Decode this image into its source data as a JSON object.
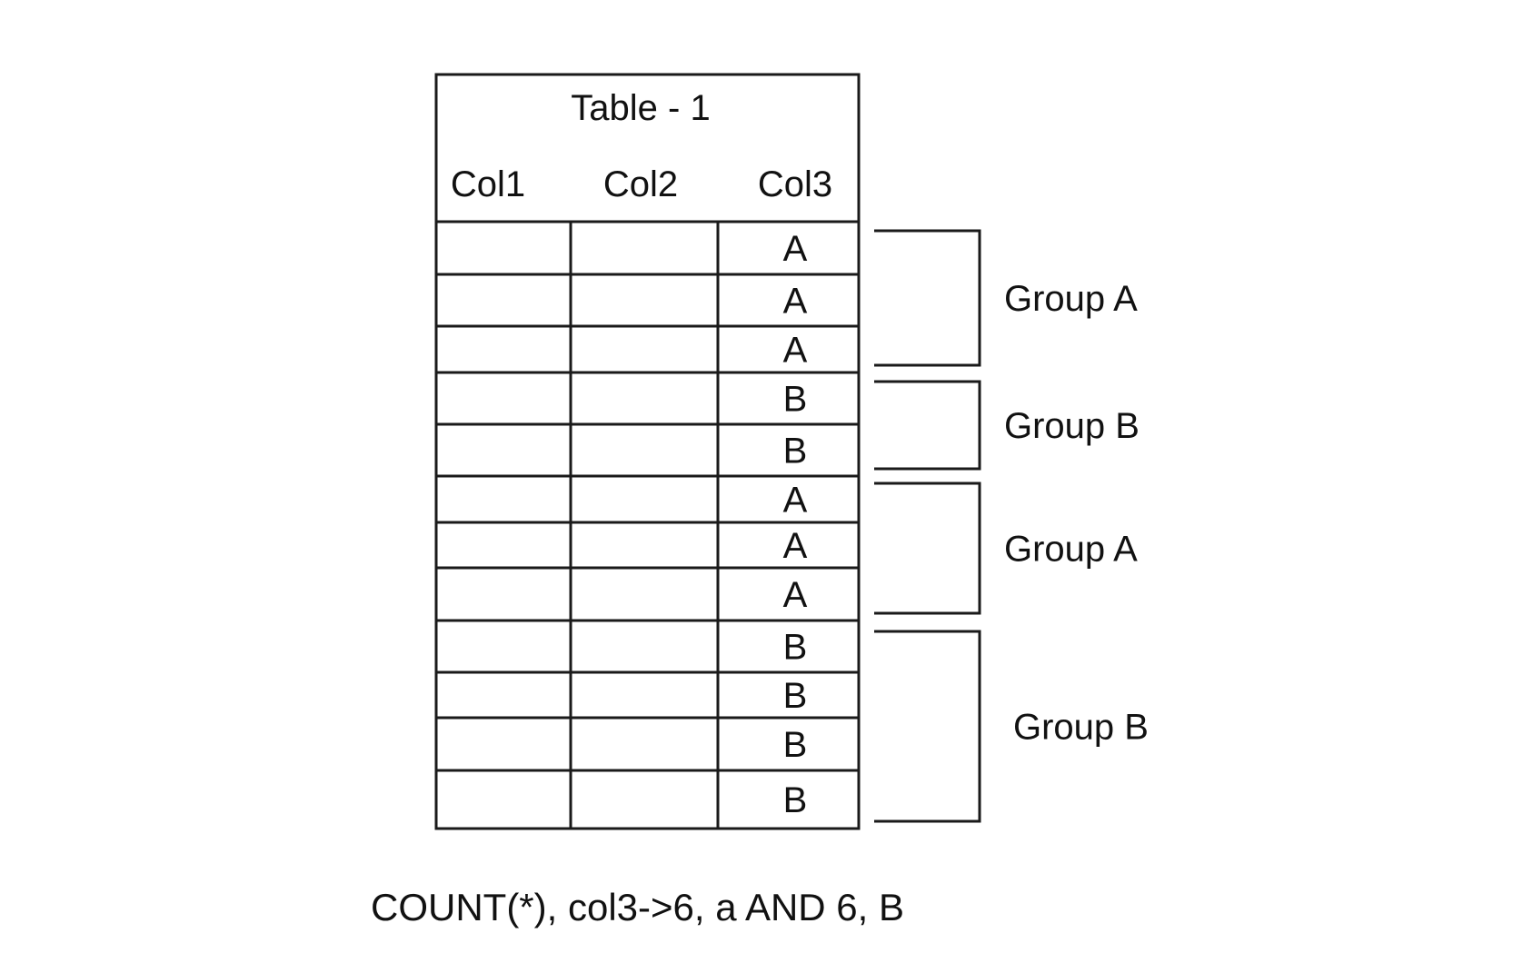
{
  "table": {
    "title": "Table - 1",
    "columns": [
      "Col1",
      "Col2",
      "Col3"
    ],
    "rows": [
      [
        "",
        "",
        "A"
      ],
      [
        "",
        "",
        "A"
      ],
      [
        "",
        "",
        "A"
      ],
      [
        "",
        "",
        "B"
      ],
      [
        "",
        "",
        "B"
      ],
      [
        "",
        "",
        "A"
      ],
      [
        "",
        "",
        "A"
      ],
      [
        "",
        "",
        "A"
      ],
      [
        "",
        "",
        "B"
      ],
      [
        "",
        "",
        "B"
      ],
      [
        "",
        "",
        "B"
      ],
      [
        "",
        "",
        "B"
      ]
    ]
  },
  "groups": [
    {
      "label": "Group A",
      "first_row": 0,
      "last_row": 2
    },
    {
      "label": "Group B",
      "first_row": 3,
      "last_row": 4
    },
    {
      "label": "Group A",
      "first_row": 5,
      "last_row": 7
    },
    {
      "label": "Group B",
      "first_row": 8,
      "last_row": 11
    }
  ],
  "caption": "COUNT(*), col3->6, a AND 6, B"
}
